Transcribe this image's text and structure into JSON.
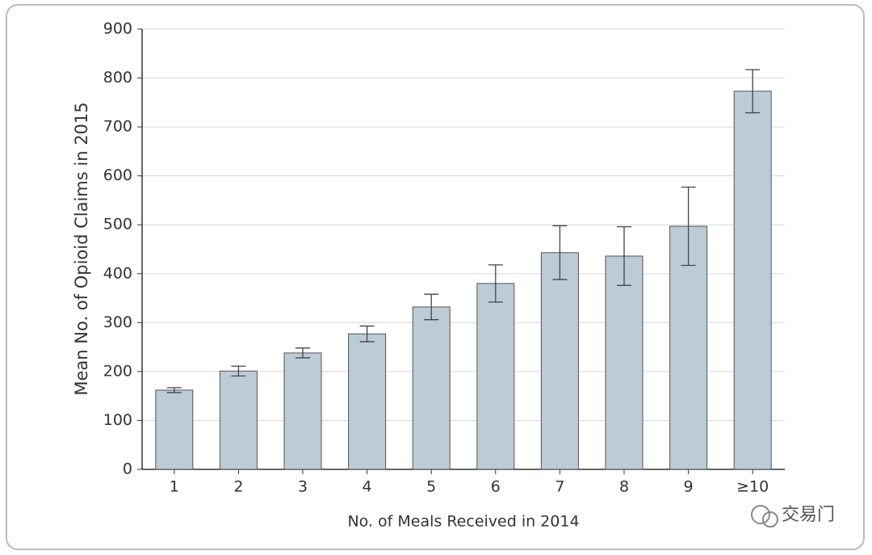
{
  "chart_data": {
    "type": "bar",
    "x_label": "No. of Meals Received in 2014",
    "y_label": "Mean No. of Opioid Claims in 2015",
    "categories": [
      "1",
      "2",
      "3",
      "4",
      "5",
      "6",
      "7",
      "8",
      "9",
      "≥10"
    ],
    "values": [
      162,
      201,
      238,
      277,
      332,
      380,
      443,
      436,
      497,
      773
    ],
    "errors": [
      5,
      10,
      10,
      16,
      26,
      38,
      55,
      60,
      80,
      44
    ],
    "color": "#bccbd6",
    "ylim": [
      0,
      900
    ],
    "yticks": [
      0,
      100,
      200,
      300,
      400,
      500,
      600,
      700,
      800,
      900
    ],
    "grid": true,
    "watermark": "交易门"
  }
}
